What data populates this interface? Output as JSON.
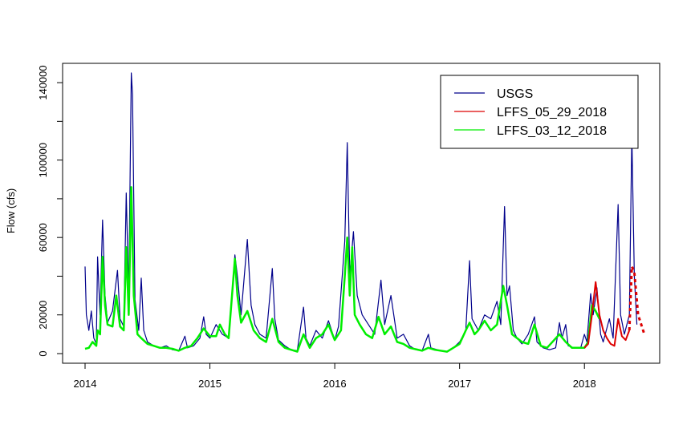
{
  "chart_data": {
    "type": "line",
    "title": "",
    "xlabel": "",
    "ylabel": "Flow (cfs)",
    "xlim": [
      2014,
      2018.5
    ],
    "ylim": [
      0,
      145000
    ],
    "x_ticks": [
      {
        "value": 2014,
        "label": "2014"
      },
      {
        "value": 2015,
        "label": "2015"
      },
      {
        "value": 2016,
        "label": "2016"
      },
      {
        "value": 2017,
        "label": "2017"
      },
      {
        "value": 2018,
        "label": "2018"
      }
    ],
    "y_ticks": [
      {
        "value": 0,
        "label": "0"
      },
      {
        "value": 20000,
        "label": "20000"
      },
      {
        "value": 60000,
        "label": "60000"
      },
      {
        "value": 100000,
        "label": "100000"
      },
      {
        "value": 140000,
        "label": "140000"
      }
    ],
    "grid": false,
    "legend": {
      "position": "top-right"
    },
    "series": [
      {
        "name": "USGS",
        "color": "#00008B",
        "style": "solid",
        "points": [
          [
            2014.0,
            45000
          ],
          [
            2014.01,
            20000
          ],
          [
            2014.03,
            12000
          ],
          [
            2014.05,
            22000
          ],
          [
            2014.07,
            8000
          ],
          [
            2014.09,
            5000
          ],
          [
            2014.1,
            50000
          ],
          [
            2014.12,
            20000
          ],
          [
            2014.14,
            69000
          ],
          [
            2014.16,
            30000
          ],
          [
            2014.18,
            16000
          ],
          [
            2014.22,
            22000
          ],
          [
            2014.26,
            43000
          ],
          [
            2014.28,
            18000
          ],
          [
            2014.31,
            14000
          ],
          [
            2014.33,
            83000
          ],
          [
            2014.35,
            30000
          ],
          [
            2014.37,
            145000
          ],
          [
            2014.38,
            134000
          ],
          [
            2014.4,
            28000
          ],
          [
            2014.43,
            12000
          ],
          [
            2014.45,
            39000
          ],
          [
            2014.47,
            12000
          ],
          [
            2014.5,
            6000
          ],
          [
            2014.55,
            4000
          ],
          [
            2014.6,
            3000
          ],
          [
            2014.65,
            4000
          ],
          [
            2014.7,
            2000
          ],
          [
            2014.75,
            1500
          ],
          [
            2014.8,
            9000
          ],
          [
            2014.82,
            3000
          ],
          [
            2014.87,
            4000
          ],
          [
            2014.92,
            8000
          ],
          [
            2014.95,
            19000
          ],
          [
            2014.97,
            10000
          ],
          [
            2015.0,
            8000
          ],
          [
            2015.05,
            15000
          ],
          [
            2015.1,
            10000
          ],
          [
            2015.15,
            8000
          ],
          [
            2015.2,
            51000
          ],
          [
            2015.22,
            40000
          ],
          [
            2015.25,
            20000
          ],
          [
            2015.3,
            59000
          ],
          [
            2015.33,
            25000
          ],
          [
            2015.36,
            15000
          ],
          [
            2015.4,
            10000
          ],
          [
            2015.45,
            8000
          ],
          [
            2015.5,
            44000
          ],
          [
            2015.52,
            18000
          ],
          [
            2015.55,
            7000
          ],
          [
            2015.6,
            4000
          ],
          [
            2015.65,
            2000
          ],
          [
            2015.7,
            1500
          ],
          [
            2015.75,
            24000
          ],
          [
            2015.77,
            8000
          ],
          [
            2015.8,
            4000
          ],
          [
            2015.85,
            12000
          ],
          [
            2015.9,
            8000
          ],
          [
            2015.95,
            17000
          ],
          [
            2016.0,
            7000
          ],
          [
            2016.03,
            14000
          ],
          [
            2016.08,
            58000
          ],
          [
            2016.1,
            109000
          ],
          [
            2016.12,
            40000
          ],
          [
            2016.15,
            63000
          ],
          [
            2016.18,
            30000
          ],
          [
            2016.22,
            20000
          ],
          [
            2016.27,
            15000
          ],
          [
            2016.32,
            10000
          ],
          [
            2016.37,
            38000
          ],
          [
            2016.4,
            15000
          ],
          [
            2016.45,
            30000
          ],
          [
            2016.5,
            8000
          ],
          [
            2016.55,
            10000
          ],
          [
            2016.6,
            4000
          ],
          [
            2016.65,
            2000
          ],
          [
            2016.7,
            1500
          ],
          [
            2016.75,
            10000
          ],
          [
            2016.77,
            3000
          ],
          [
            2016.85,
            1500
          ],
          [
            2016.9,
            1000
          ],
          [
            2016.95,
            3000
          ],
          [
            2017.0,
            6000
          ],
          [
            2017.05,
            12000
          ],
          [
            2017.08,
            48000
          ],
          [
            2017.1,
            18000
          ],
          [
            2017.15,
            12000
          ],
          [
            2017.2,
            20000
          ],
          [
            2017.25,
            18000
          ],
          [
            2017.3,
            27000
          ],
          [
            2017.33,
            15000
          ],
          [
            2017.36,
            76000
          ],
          [
            2017.38,
            30000
          ],
          [
            2017.4,
            35000
          ],
          [
            2017.43,
            12000
          ],
          [
            2017.46,
            8000
          ],
          [
            2017.5,
            5000
          ],
          [
            2017.55,
            10000
          ],
          [
            2017.6,
            19000
          ],
          [
            2017.62,
            6000
          ],
          [
            2017.67,
            3000
          ],
          [
            2017.72,
            2000
          ],
          [
            2017.77,
            3000
          ],
          [
            2017.8,
            16000
          ],
          [
            2017.82,
            8000
          ],
          [
            2017.85,
            15000
          ],
          [
            2017.87,
            4000
          ],
          [
            2017.92,
            3000
          ],
          [
            2017.97,
            3000
          ],
          [
            2018.0,
            10000
          ],
          [
            2018.02,
            6000
          ],
          [
            2018.05,
            31000
          ],
          [
            2018.07,
            20000
          ],
          [
            2018.1,
            34000
          ],
          [
            2018.13,
            10000
          ],
          [
            2018.15,
            6000
          ],
          [
            2018.2,
            18000
          ],
          [
            2018.23,
            8000
          ],
          [
            2018.27,
            77000
          ],
          [
            2018.29,
            20000
          ],
          [
            2018.32,
            10000
          ],
          [
            2018.36,
            20000
          ],
          [
            2018.38,
            113000
          ],
          [
            2018.4,
            40000
          ],
          [
            2018.42,
            15000
          ]
        ]
      },
      {
        "name": "LFFS_05_29_2018",
        "color": "#DD0000",
        "style": "solid-then-dotted",
        "points": [
          [
            2018.0,
            3000
          ],
          [
            2018.03,
            5000
          ],
          [
            2018.06,
            20000
          ],
          [
            2018.09,
            37000
          ],
          [
            2018.12,
            20000
          ],
          [
            2018.15,
            12000
          ],
          [
            2018.18,
            8000
          ],
          [
            2018.21,
            5000
          ],
          [
            2018.24,
            4000
          ],
          [
            2018.27,
            18000
          ],
          [
            2018.3,
            9000
          ],
          [
            2018.33,
            7000
          ],
          [
            2018.36,
            12000
          ],
          [
            2018.38,
            45000
          ],
          [
            2018.4,
            42000
          ],
          [
            2018.43,
            20000
          ],
          [
            2018.46,
            14000
          ],
          [
            2018.48,
            10000
          ]
        ]
      },
      {
        "name": "LFFS_03_12_2018",
        "color": "#00EE00",
        "style": "solid",
        "points": [
          [
            2014.0,
            2500
          ],
          [
            2014.03,
            3000
          ],
          [
            2014.06,
            6000
          ],
          [
            2014.09,
            4000
          ],
          [
            2014.1,
            12000
          ],
          [
            2014.12,
            10000
          ],
          [
            2014.14,
            50000
          ],
          [
            2014.16,
            25000
          ],
          [
            2014.18,
            15000
          ],
          [
            2014.22,
            14000
          ],
          [
            2014.25,
            30000
          ],
          [
            2014.28,
            14000
          ],
          [
            2014.31,
            12000
          ],
          [
            2014.33,
            55000
          ],
          [
            2014.35,
            20000
          ],
          [
            2014.37,
            86000
          ],
          [
            2014.39,
            30000
          ],
          [
            2014.42,
            10000
          ],
          [
            2014.45,
            8000
          ],
          [
            2014.5,
            5000
          ],
          [
            2014.55,
            4000
          ],
          [
            2014.6,
            3000
          ],
          [
            2014.65,
            3000
          ],
          [
            2014.7,
            2500
          ],
          [
            2014.75,
            1500
          ],
          [
            2014.8,
            3000
          ],
          [
            2014.85,
            4000
          ],
          [
            2014.9,
            8000
          ],
          [
            2014.95,
            13000
          ],
          [
            2015.0,
            9000
          ],
          [
            2015.05,
            9000
          ],
          [
            2015.08,
            15000
          ],
          [
            2015.12,
            10000
          ],
          [
            2015.15,
            8000
          ],
          [
            2015.2,
            49000
          ],
          [
            2015.22,
            30000
          ],
          [
            2015.25,
            16000
          ],
          [
            2015.3,
            22000
          ],
          [
            2015.35,
            12000
          ],
          [
            2015.4,
            8000
          ],
          [
            2015.45,
            6000
          ],
          [
            2015.5,
            18000
          ],
          [
            2015.55,
            6000
          ],
          [
            2015.6,
            3000
          ],
          [
            2015.7,
            1000
          ],
          [
            2015.75,
            10000
          ],
          [
            2015.8,
            3000
          ],
          [
            2015.85,
            8000
          ],
          [
            2015.9,
            10000
          ],
          [
            2015.95,
            15000
          ],
          [
            2016.0,
            7000
          ],
          [
            2016.05,
            12000
          ],
          [
            2016.08,
            40000
          ],
          [
            2016.1,
            60000
          ],
          [
            2016.12,
            30000
          ],
          [
            2016.14,
            55000
          ],
          [
            2016.16,
            20000
          ],
          [
            2016.2,
            15000
          ],
          [
            2016.25,
            10000
          ],
          [
            2016.3,
            8000
          ],
          [
            2016.35,
            19000
          ],
          [
            2016.4,
            10000
          ],
          [
            2016.45,
            14000
          ],
          [
            2016.5,
            6000
          ],
          [
            2016.55,
            5000
          ],
          [
            2016.6,
            3000
          ],
          [
            2016.7,
            1500
          ],
          [
            2016.75,
            3000
          ],
          [
            2016.8,
            2000
          ],
          [
            2016.9,
            1000
          ],
          [
            2017.0,
            5000
          ],
          [
            2017.05,
            12000
          ],
          [
            2017.08,
            16000
          ],
          [
            2017.12,
            10000
          ],
          [
            2017.15,
            12000
          ],
          [
            2017.2,
            17000
          ],
          [
            2017.25,
            12000
          ],
          [
            2017.3,
            15000
          ],
          [
            2017.35,
            35000
          ],
          [
            2017.38,
            25000
          ],
          [
            2017.42,
            10000
          ],
          [
            2017.5,
            6000
          ],
          [
            2017.55,
            5000
          ],
          [
            2017.6,
            15000
          ],
          [
            2017.65,
            4000
          ],
          [
            2017.7,
            3000
          ],
          [
            2017.8,
            10000
          ],
          [
            2017.85,
            6000
          ],
          [
            2017.9,
            3000
          ],
          [
            2017.95,
            3000
          ],
          [
            2018.0,
            3000
          ],
          [
            2018.03,
            6000
          ],
          [
            2018.06,
            25000
          ],
          [
            2018.09,
            22000
          ],
          [
            2018.12,
            18000
          ]
        ]
      }
    ]
  }
}
